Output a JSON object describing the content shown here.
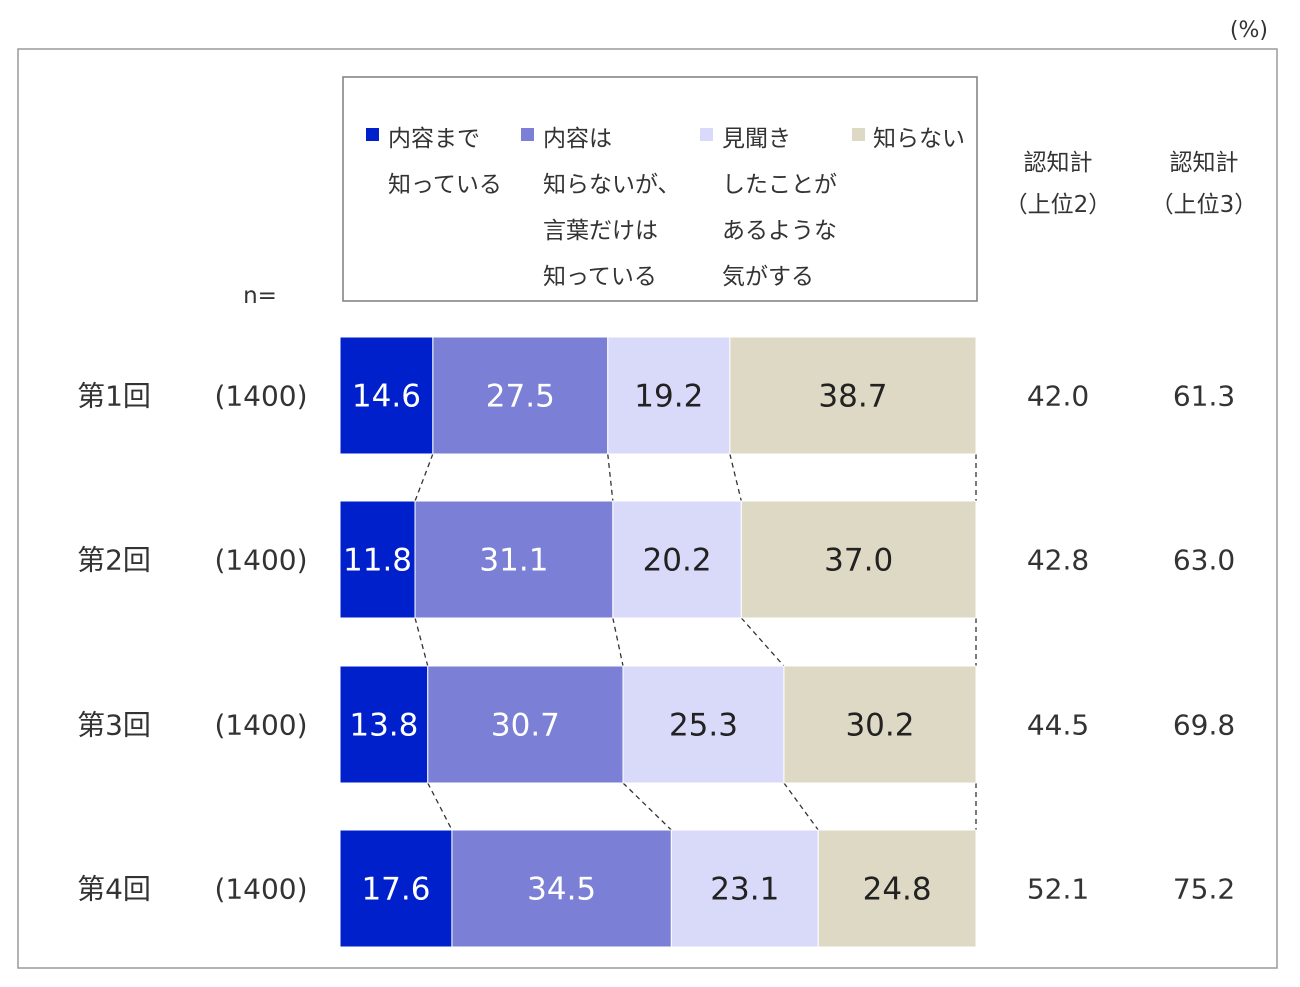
{
  "chart_data": {
    "type": "bar",
    "orientation": "horizontal",
    "stacked": true,
    "unit": "(%)",
    "n_label": "n=",
    "categories": [
      "第1回",
      "第2回",
      "第3回",
      "第4回"
    ],
    "n_values": [
      "(1400)",
      "(1400)",
      "(1400)",
      "(1400)"
    ],
    "series": [
      {
        "name": "内容まで知っている",
        "legend_lines": [
          "内容まで",
          "知っている"
        ],
        "color": "#0020CC",
        "text_color": "#ffffff",
        "values": [
          14.6,
          11.8,
          13.8,
          17.6
        ]
      },
      {
        "name": "内容は知らないが、言葉だけは知っている",
        "legend_lines": [
          "内容は",
          "知らないが、",
          "言葉だけは",
          "知っている"
        ],
        "color": "#7B80D6",
        "text_color": "#ffffff",
        "values": [
          27.5,
          31.1,
          30.7,
          34.5
        ]
      },
      {
        "name": "見聞きしたことがあるような気がする",
        "legend_lines": [
          "見聞き",
          "したことが",
          "あるような",
          "気がする"
        ],
        "color": "#D9DAFA",
        "text_color": "#222222",
        "values": [
          19.2,
          20.2,
          25.3,
          23.1
        ]
      },
      {
        "name": "知らない",
        "legend_lines": [
          "知らない"
        ],
        "color": "#DDD9C4",
        "text_color": "#222222",
        "values": [
          38.7,
          37.0,
          30.2,
          24.8
        ]
      }
    ],
    "totals": [
      {
        "header_lines": [
          "認知計",
          "（上位2）"
        ],
        "values": [
          "42.0",
          "42.8",
          "44.5",
          "52.1"
        ]
      },
      {
        "header_lines": [
          "認知計",
          "（上位3）"
        ],
        "values": [
          "61.3",
          "63.0",
          "69.8",
          "75.2"
        ]
      }
    ],
    "xlim": [
      0,
      100
    ],
    "connector_lines": "dashed",
    "grid": false
  }
}
